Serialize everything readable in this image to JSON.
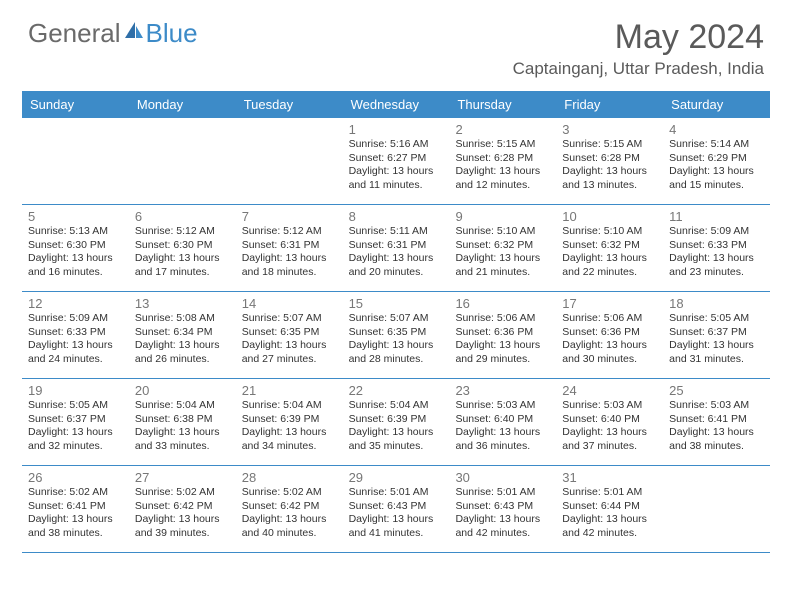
{
  "logo": {
    "text_gray": "General",
    "text_blue": "Blue"
  },
  "title": "May 2024",
  "location": "Captainganj, Uttar Pradesh, India",
  "colors": {
    "header_bg": "#3d8bc8",
    "header_text": "#ffffff",
    "body_text": "#333333",
    "daynum_text": "#777777",
    "title_text": "#5a5a5a",
    "border": "#3d8bc8"
  },
  "day_names": [
    "Sunday",
    "Monday",
    "Tuesday",
    "Wednesday",
    "Thursday",
    "Friday",
    "Saturday"
  ],
  "weeks": [
    [
      null,
      null,
      null,
      {
        "d": "1",
        "sr": "5:16 AM",
        "ss": "6:27 PM",
        "dl": "13 hours and 11 minutes."
      },
      {
        "d": "2",
        "sr": "5:15 AM",
        "ss": "6:28 PM",
        "dl": "13 hours and 12 minutes."
      },
      {
        "d": "3",
        "sr": "5:15 AM",
        "ss": "6:28 PM",
        "dl": "13 hours and 13 minutes."
      },
      {
        "d": "4",
        "sr": "5:14 AM",
        "ss": "6:29 PM",
        "dl": "13 hours and 15 minutes."
      }
    ],
    [
      {
        "d": "5",
        "sr": "5:13 AM",
        "ss": "6:30 PM",
        "dl": "13 hours and 16 minutes."
      },
      {
        "d": "6",
        "sr": "5:12 AM",
        "ss": "6:30 PM",
        "dl": "13 hours and 17 minutes."
      },
      {
        "d": "7",
        "sr": "5:12 AM",
        "ss": "6:31 PM",
        "dl": "13 hours and 18 minutes."
      },
      {
        "d": "8",
        "sr": "5:11 AM",
        "ss": "6:31 PM",
        "dl": "13 hours and 20 minutes."
      },
      {
        "d": "9",
        "sr": "5:10 AM",
        "ss": "6:32 PM",
        "dl": "13 hours and 21 minutes."
      },
      {
        "d": "10",
        "sr": "5:10 AM",
        "ss": "6:32 PM",
        "dl": "13 hours and 22 minutes."
      },
      {
        "d": "11",
        "sr": "5:09 AM",
        "ss": "6:33 PM",
        "dl": "13 hours and 23 minutes."
      }
    ],
    [
      {
        "d": "12",
        "sr": "5:09 AM",
        "ss": "6:33 PM",
        "dl": "13 hours and 24 minutes."
      },
      {
        "d": "13",
        "sr": "5:08 AM",
        "ss": "6:34 PM",
        "dl": "13 hours and 26 minutes."
      },
      {
        "d": "14",
        "sr": "5:07 AM",
        "ss": "6:35 PM",
        "dl": "13 hours and 27 minutes."
      },
      {
        "d": "15",
        "sr": "5:07 AM",
        "ss": "6:35 PM",
        "dl": "13 hours and 28 minutes."
      },
      {
        "d": "16",
        "sr": "5:06 AM",
        "ss": "6:36 PM",
        "dl": "13 hours and 29 minutes."
      },
      {
        "d": "17",
        "sr": "5:06 AM",
        "ss": "6:36 PM",
        "dl": "13 hours and 30 minutes."
      },
      {
        "d": "18",
        "sr": "5:05 AM",
        "ss": "6:37 PM",
        "dl": "13 hours and 31 minutes."
      }
    ],
    [
      {
        "d": "19",
        "sr": "5:05 AM",
        "ss": "6:37 PM",
        "dl": "13 hours and 32 minutes."
      },
      {
        "d": "20",
        "sr": "5:04 AM",
        "ss": "6:38 PM",
        "dl": "13 hours and 33 minutes."
      },
      {
        "d": "21",
        "sr": "5:04 AM",
        "ss": "6:39 PM",
        "dl": "13 hours and 34 minutes."
      },
      {
        "d": "22",
        "sr": "5:04 AM",
        "ss": "6:39 PM",
        "dl": "13 hours and 35 minutes."
      },
      {
        "d": "23",
        "sr": "5:03 AM",
        "ss": "6:40 PM",
        "dl": "13 hours and 36 minutes."
      },
      {
        "d": "24",
        "sr": "5:03 AM",
        "ss": "6:40 PM",
        "dl": "13 hours and 37 minutes."
      },
      {
        "d": "25",
        "sr": "5:03 AM",
        "ss": "6:41 PM",
        "dl": "13 hours and 38 minutes."
      }
    ],
    [
      {
        "d": "26",
        "sr": "5:02 AM",
        "ss": "6:41 PM",
        "dl": "13 hours and 38 minutes."
      },
      {
        "d": "27",
        "sr": "5:02 AM",
        "ss": "6:42 PM",
        "dl": "13 hours and 39 minutes."
      },
      {
        "d": "28",
        "sr": "5:02 AM",
        "ss": "6:42 PM",
        "dl": "13 hours and 40 minutes."
      },
      {
        "d": "29",
        "sr": "5:01 AM",
        "ss": "6:43 PM",
        "dl": "13 hours and 41 minutes."
      },
      {
        "d": "30",
        "sr": "5:01 AM",
        "ss": "6:43 PM",
        "dl": "13 hours and 42 minutes."
      },
      {
        "d": "31",
        "sr": "5:01 AM",
        "ss": "6:44 PM",
        "dl": "13 hours and 42 minutes."
      },
      null
    ]
  ],
  "labels": {
    "sunrise": "Sunrise: ",
    "sunset": "Sunset: ",
    "daylight": "Daylight: "
  }
}
